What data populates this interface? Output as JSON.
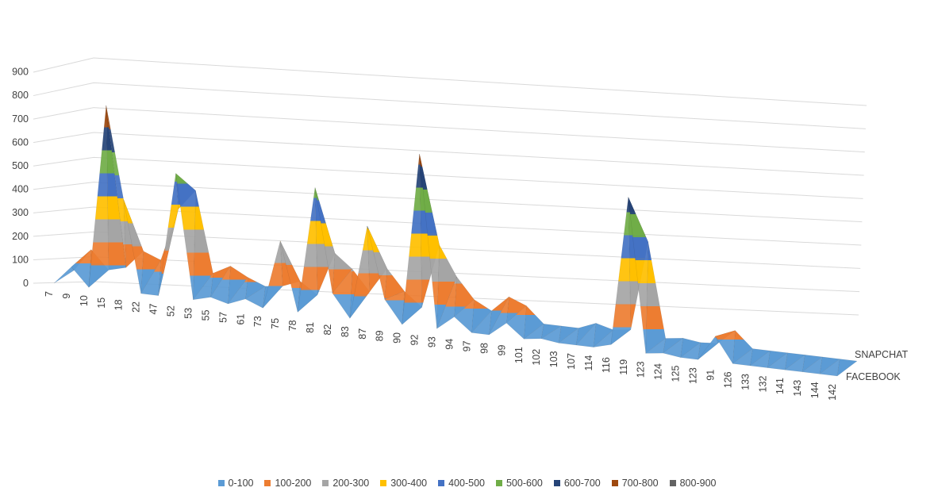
{
  "chart_data": {
    "type": "surface-3d",
    "ylim": [
      0,
      900
    ],
    "y_ticks": [
      "0",
      "100",
      "200",
      "300",
      "400",
      "500",
      "600",
      "700",
      "800",
      "900"
    ],
    "categories": [
      "7",
      "9",
      "10",
      "15",
      "18",
      "22",
      "47",
      "52",
      "53",
      "55",
      "57",
      "61",
      "73",
      "75",
      "78",
      "81",
      "82",
      "83",
      "87",
      "89",
      "90",
      "92",
      "93",
      "94",
      "97",
      "98",
      "99",
      "101",
      "102",
      "103",
      "107",
      "114",
      "116",
      "119",
      "123",
      "124",
      "125",
      "123",
      "91",
      "126",
      "133",
      "132",
      "141",
      "143",
      "144",
      "142"
    ],
    "series": [
      {
        "name": "SNAPCHAT",
        "values": [
          0,
          100,
          20,
          40,
          120,
          90,
          320,
          410,
          60,
          100,
          60,
          30,
          40,
          70,
          20,
          210,
          150,
          60,
          170,
          80,
          20,
          300,
          170,
          80,
          40,
          110,
          80,
          10,
          10,
          10,
          40,
          20,
          30,
          420,
          10,
          20,
          10,
          15,
          80,
          10,
          10,
          10,
          10,
          10,
          10,
          10
        ]
      },
      {
        "name": "FACEBOOK",
        "values": [
          0,
          80,
          0,
          800,
          400,
          0,
          0,
          540,
          0,
          20,
          0,
          30,
          0,
          300,
          0,
          550,
          100,
          0,
          410,
          100,
          0,
          750,
          0,
          60,
          0,
          0,
          60,
          0,
          10,
          0,
          0,
          0,
          20,
          670,
          0,
          10,
          0,
          0,
          110,
          0,
          0,
          0,
          0,
          0,
          0,
          0
        ]
      }
    ],
    "bands": [
      {
        "name": "0-100",
        "color": "#5B9BD5"
      },
      {
        "name": "100-200",
        "color": "#ED7D31"
      },
      {
        "name": "200-300",
        "color": "#A5A5A5"
      },
      {
        "name": "300-400",
        "color": "#FFC000"
      },
      {
        "name": "400-500",
        "color": "#4472C4"
      },
      {
        "name": "500-600",
        "color": "#70AD47"
      },
      {
        "name": "600-700",
        "color": "#264478"
      },
      {
        "name": "700-800",
        "color": "#9E480E"
      },
      {
        "name": "800-900",
        "color": "#636363"
      }
    ],
    "grid": true,
    "legend_position": "bottom"
  }
}
